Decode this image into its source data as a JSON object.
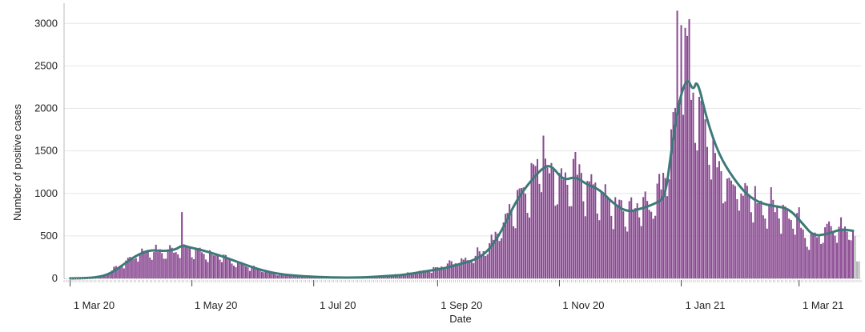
{
  "chart_data": {
    "type": "bar",
    "xlabel": "Date",
    "ylabel": "Number of positive cases",
    "ylim": [
      0,
      3200
    ],
    "yticks": [
      0,
      500,
      1000,
      1500,
      2000,
      2500,
      3000
    ],
    "x_range": [
      "2020-02-27",
      "2021-04-01"
    ],
    "xticks": [
      {
        "date": "2020-03-01",
        "label": "1 Mar 20"
      },
      {
        "date": "2020-05-01",
        "label": "1 May 20"
      },
      {
        "date": "2020-07-01",
        "label": "1 Jul 20"
      },
      {
        "date": "2020-09-01",
        "label": "1 Sep 20"
      },
      {
        "date": "2020-11-01",
        "label": "1 Nov 20"
      },
      {
        "date": "2021-01-01",
        "label": "1 Jan 21"
      },
      {
        "date": "2021-03-01",
        "label": "1 Mar 21"
      }
    ],
    "grid": "horizontal",
    "colors": {
      "bars": "#8b4a93",
      "bars_incomplete": "#b5b5b5",
      "trend": "#3d7a77"
    },
    "daily_cases_keypoints": [
      [
        "2020-03-01",
        0
      ],
      [
        "2020-03-10",
        5
      ],
      [
        "2020-03-18",
        40
      ],
      [
        "2020-03-26",
        150
      ],
      [
        "2020-04-02",
        260
      ],
      [
        "2020-04-08",
        330
      ],
      [
        "2020-04-15",
        310
      ],
      [
        "2020-04-22",
        330
      ],
      [
        "2020-04-25",
        380
      ],
      [
        "2020-05-01",
        330
      ],
      [
        "2020-05-08",
        300
      ],
      [
        "2020-05-15",
        250
      ],
      [
        "2020-05-22",
        200
      ],
      [
        "2020-05-29",
        150
      ],
      [
        "2020-06-05",
        100
      ],
      [
        "2020-06-12",
        60
      ],
      [
        "2020-06-20",
        40
      ],
      [
        "2020-07-01",
        25
      ],
      [
        "2020-07-15",
        15
      ],
      [
        "2020-08-01",
        25
      ],
      [
        "2020-08-15",
        50
      ],
      [
        "2020-08-25",
        80
      ],
      [
        "2020-09-01",
        120
      ],
      [
        "2020-09-08",
        180
      ],
      [
        "2020-09-15",
        220
      ],
      [
        "2020-09-22",
        300
      ],
      [
        "2020-09-29",
        450
      ],
      [
        "2020-10-05",
        700
      ],
      [
        "2020-10-12",
        1000
      ],
      [
        "2020-10-19",
        1200
      ],
      [
        "2020-10-24",
        1350
      ],
      [
        "2020-10-29",
        1250
      ],
      [
        "2020-11-05",
        1150
      ],
      [
        "2020-11-12",
        1200
      ],
      [
        "2020-11-19",
        1050
      ],
      [
        "2020-11-26",
        900
      ],
      [
        "2020-12-03",
        800
      ],
      [
        "2020-12-10",
        850
      ],
      [
        "2020-12-17",
        900
      ],
      [
        "2020-12-22",
        1000
      ],
      [
        "2020-12-26",
        1500
      ],
      [
        "2020-12-30",
        2200
      ],
      [
        "2021-01-03",
        2500
      ],
      [
        "2021-01-07",
        2300
      ],
      [
        "2021-01-12",
        1900
      ],
      [
        "2021-01-17",
        1500
      ],
      [
        "2021-01-24",
        1200
      ],
      [
        "2021-01-31",
        1000
      ],
      [
        "2021-02-07",
        900
      ],
      [
        "2021-02-14",
        850
      ],
      [
        "2021-02-21",
        850
      ],
      [
        "2021-02-28",
        700
      ],
      [
        "2021-03-05",
        520
      ],
      [
        "2021-03-12",
        540
      ],
      [
        "2021-03-19",
        600
      ],
      [
        "2021-03-27",
        580
      ]
    ],
    "spikes": [
      [
        "2020-04-26",
        780
      ],
      [
        "2020-10-24",
        1680
      ],
      [
        "2020-12-30",
        3150
      ],
      [
        "2021-01-05",
        3050
      ],
      [
        "2021-01-01",
        2980
      ]
    ],
    "trend_7day": [
      [
        "2020-03-01",
        0
      ],
      [
        "2020-03-12",
        5
      ],
      [
        "2020-03-20",
        40
      ],
      [
        "2020-03-27",
        150
      ],
      [
        "2020-04-03",
        270
      ],
      [
        "2020-04-10",
        335
      ],
      [
        "2020-04-17",
        320
      ],
      [
        "2020-04-23",
        340
      ],
      [
        "2020-04-26",
        390
      ],
      [
        "2020-05-01",
        360
      ],
      [
        "2020-05-08",
        320
      ],
      [
        "2020-05-15",
        270
      ],
      [
        "2020-05-22",
        210
      ],
      [
        "2020-05-29",
        150
      ],
      [
        "2020-06-05",
        95
      ],
      [
        "2020-06-14",
        50
      ],
      [
        "2020-06-25",
        25
      ],
      [
        "2020-07-10",
        10
      ],
      [
        "2020-07-25",
        10
      ],
      [
        "2020-08-05",
        25
      ],
      [
        "2020-08-15",
        40
      ],
      [
        "2020-08-25",
        80
      ],
      [
        "2020-09-05",
        120
      ],
      [
        "2020-09-12",
        170
      ],
      [
        "2020-09-19",
        210
      ],
      [
        "2020-09-26",
        310
      ],
      [
        "2020-10-03",
        550
      ],
      [
        "2020-10-10",
        900
      ],
      [
        "2020-10-17",
        1130
      ],
      [
        "2020-10-24",
        1310
      ],
      [
        "2020-10-28",
        1330
      ],
      [
        "2020-11-03",
        1150
      ],
      [
        "2020-11-09",
        1200
      ],
      [
        "2020-11-15",
        1100
      ],
      [
        "2020-11-21",
        1050
      ],
      [
        "2020-11-28",
        880
      ],
      [
        "2020-12-05",
        780
      ],
      [
        "2020-12-12",
        820
      ],
      [
        "2020-12-19",
        880
      ],
      [
        "2020-12-24",
        950
      ],
      [
        "2020-12-27",
        1500
      ],
      [
        "2020-12-31",
        2100
      ],
      [
        "2021-01-04",
        2370
      ],
      [
        "2021-01-07",
        2200
      ],
      [
        "2021-01-09",
        2350
      ],
      [
        "2021-01-14",
        1850
      ],
      [
        "2021-01-20",
        1450
      ],
      [
        "2021-01-27",
        1180
      ],
      [
        "2021-02-03",
        980
      ],
      [
        "2021-02-10",
        880
      ],
      [
        "2021-02-17",
        850
      ],
      [
        "2021-02-24",
        820
      ],
      [
        "2021-03-03",
        640
      ],
      [
        "2021-03-08",
        500
      ],
      [
        "2021-03-15",
        520
      ],
      [
        "2021-03-22",
        580
      ],
      [
        "2021-03-28",
        560
      ]
    ],
    "incomplete_from": "2021-03-29"
  }
}
